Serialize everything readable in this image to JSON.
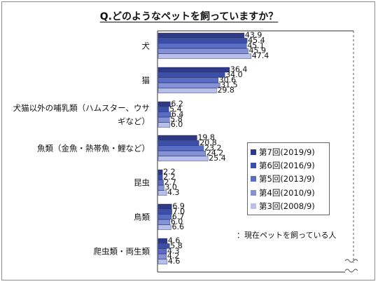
{
  "chart_data": {
    "type": "bar",
    "orientation": "horizontal",
    "title": "Q.どのようなペットを飼っていますか？",
    "categories": [
      "犬",
      "猫",
      "犬猫以外の哺乳類（ハムスター、ウサギなど）",
      "魚類（金魚・熱帯魚・鯉など）",
      "昆虫",
      "鳥類",
      "爬虫類・両生類"
    ],
    "series": [
      {
        "name": "第7回(2019/9)",
        "color": "#2e3a87",
        "values": [
          43.9,
          36.4,
          6.2,
          19.8,
          2.2,
          6.9,
          4.6
        ]
      },
      {
        "name": "第6回(2016/9)",
        "color": "#3c4fa8",
        "values": [
          45.4,
          34.0,
          5.4,
          20.8,
          2.2,
          7.0,
          5.8
        ]
      },
      {
        "name": "第5回(2013/9)",
        "color": "#5a6cc4",
        "values": [
          45.1,
          30.6,
          6.4,
          23.2,
          2.7,
          6.7,
          4.3
        ]
      },
      {
        "name": "第4回(2010/9)",
        "color": "#8592d6",
        "values": [
          45.9,
          31.5,
          5.8,
          24.2,
          3.0,
          6.0,
          4.2
        ]
      },
      {
        "name": "第3回(2008/9)",
        "color": "#b8bfe8",
        "values": [
          47.4,
          29.8,
          6.0,
          25.4,
          4.3,
          6.6,
          4.6
        ]
      }
    ],
    "xlim": [
      0,
      100
    ],
    "grid": false,
    "legend_position": "right",
    "note": "：現在ペットを飼っている人"
  }
}
